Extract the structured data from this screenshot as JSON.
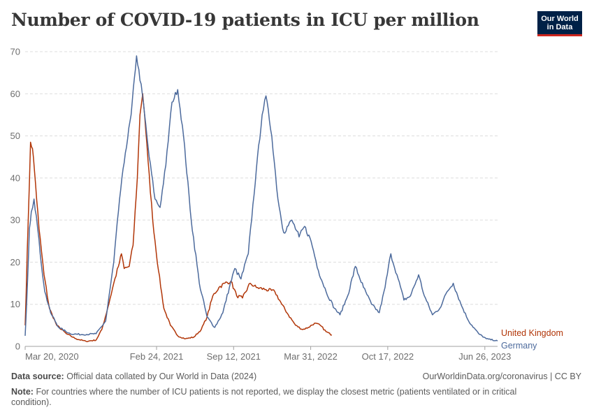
{
  "header": {
    "title": "Number of COVID-19 patients in ICU per million",
    "logo_line1": "Our World",
    "logo_line2": "in Data"
  },
  "footer": {
    "source_label": "Data source:",
    "source_text": "Official data collated by Our World in Data (2024)",
    "url": "OurWorldinData.org/coronavirus | CC BY",
    "note_label": "Note:",
    "note_text": "For countries where the number of ICU patients is not reported, we display the closest metric (patients ventilated or in critical condition)."
  },
  "colors": {
    "uk": "#b13507",
    "germany": "#4c6a9c",
    "grid": "#dddddd",
    "logo_bg": "#002147",
    "logo_accent": "#ce261e"
  },
  "chart_data": {
    "type": "line",
    "title": "Number of COVID-19 patients in ICU per million",
    "xlabel": "",
    "ylabel": "",
    "ylim": [
      0,
      70
    ],
    "y_ticks": [
      0,
      10,
      20,
      30,
      40,
      50,
      60,
      70
    ],
    "x_ticks": [
      "2020-03-20",
      "2021-02-24",
      "2021-09-12",
      "2022-03-31",
      "2022-10-17",
      "2023-06-26"
    ],
    "x_tick_labels": [
      "Mar 20, 2020",
      "Feb 24, 2021",
      "Sep 12, 2021",
      "Mar 31, 2022",
      "Oct 17, 2022",
      "Jun 26, 2023"
    ],
    "x_range": [
      "2020-03-20",
      "2023-07-29"
    ],
    "grid": "horizontal dashed",
    "legend": "labels at line ends, right",
    "series": [
      {
        "name": "United Kingdom",
        "color": "#b13507",
        "points": [
          [
            "2020-03-20",
            5
          ],
          [
            "2020-03-28",
            30
          ],
          [
            "2020-04-03",
            48.5
          ],
          [
            "2020-04-08",
            47
          ],
          [
            "2020-04-13",
            42
          ],
          [
            "2020-04-25",
            28
          ],
          [
            "2020-05-08",
            17
          ],
          [
            "2020-05-22",
            9
          ],
          [
            "2020-06-10",
            5
          ],
          [
            "2020-07-05",
            3
          ],
          [
            "2020-07-30",
            1.8
          ],
          [
            "2020-08-25",
            1.2
          ],
          [
            "2020-09-20",
            1.5
          ],
          [
            "2020-10-05",
            4
          ],
          [
            "2020-10-20",
            9
          ],
          [
            "2020-11-05",
            15
          ],
          [
            "2020-11-20",
            20
          ],
          [
            "2020-11-25",
            22
          ],
          [
            "2020-12-02",
            18.5
          ],
          [
            "2020-12-15",
            19
          ],
          [
            "2020-12-25",
            24
          ],
          [
            "2021-01-05",
            40
          ],
          [
            "2021-01-12",
            55
          ],
          [
            "2021-01-19",
            60
          ],
          [
            "2021-01-24",
            55
          ],
          [
            "2021-02-02",
            44
          ],
          [
            "2021-02-14",
            30
          ],
          [
            "2021-03-01",
            18
          ],
          [
            "2021-03-15",
            9
          ],
          [
            "2021-04-01",
            5
          ],
          [
            "2021-04-20",
            2.5
          ],
          [
            "2021-05-10",
            1.8
          ],
          [
            "2021-06-01",
            2.2
          ],
          [
            "2021-06-20",
            4
          ],
          [
            "2021-07-05",
            7
          ],
          [
            "2021-07-20",
            12
          ],
          [
            "2021-08-05",
            14
          ],
          [
            "2021-08-20",
            15
          ],
          [
            "2021-09-05",
            15.5
          ],
          [
            "2021-09-20",
            12
          ],
          [
            "2021-10-05",
            11.5
          ],
          [
            "2021-10-25",
            15
          ],
          [
            "2021-11-10",
            14
          ],
          [
            "2021-12-05",
            13.5
          ],
          [
            "2021-12-28",
            13
          ],
          [
            "2022-01-15",
            10
          ],
          [
            "2022-02-01",
            7.5
          ],
          [
            "2022-02-20",
            5
          ],
          [
            "2022-03-10",
            4
          ],
          [
            "2022-03-25",
            4.5
          ],
          [
            "2022-04-10",
            5.5
          ],
          [
            "2022-04-25",
            5
          ],
          [
            "2022-05-10",
            3.5
          ],
          [
            "2022-05-25",
            2.7
          ]
        ]
      },
      {
        "name": "Germany",
        "color": "#4c6a9c",
        "points": [
          [
            "2020-03-20",
            2.5
          ],
          [
            "2020-03-26",
            15
          ],
          [
            "2020-03-31",
            28
          ],
          [
            "2020-04-05",
            32
          ],
          [
            "2020-04-12",
            35
          ],
          [
            "2020-04-18",
            31
          ],
          [
            "2020-04-28",
            22
          ],
          [
            "2020-05-10",
            13
          ],
          [
            "2020-05-25",
            8
          ],
          [
            "2020-06-15",
            4.5
          ],
          [
            "2020-07-15",
            3
          ],
          [
            "2020-08-15",
            2.8
          ],
          [
            "2020-09-20",
            3
          ],
          [
            "2020-10-15",
            6
          ],
          [
            "2020-11-05",
            20
          ],
          [
            "2020-11-20",
            35
          ],
          [
            "2020-12-05",
            46
          ],
          [
            "2020-12-20",
            55
          ],
          [
            "2021-01-03",
            69
          ],
          [
            "2021-01-18",
            60
          ],
          [
            "2021-02-05",
            45
          ],
          [
            "2021-02-20",
            35
          ],
          [
            "2021-03-05",
            33
          ],
          [
            "2021-03-20",
            43
          ],
          [
            "2021-04-05",
            58
          ],
          [
            "2021-04-20",
            61
          ],
          [
            "2021-05-05",
            50
          ],
          [
            "2021-05-25",
            30
          ],
          [
            "2021-06-15",
            15
          ],
          [
            "2021-07-05",
            7
          ],
          [
            "2021-07-25",
            4.5
          ],
          [
            "2021-08-15",
            8
          ],
          [
            "2021-09-01",
            14
          ],
          [
            "2021-09-15",
            18.5
          ],
          [
            "2021-10-01",
            16
          ],
          [
            "2021-10-20",
            22
          ],
          [
            "2021-11-10",
            42
          ],
          [
            "2021-11-25",
            55
          ],
          [
            "2021-12-05",
            59.5
          ],
          [
            "2021-12-20",
            50
          ],
          [
            "2022-01-05",
            35
          ],
          [
            "2022-01-20",
            27
          ],
          [
            "2022-02-10",
            30
          ],
          [
            "2022-03-01",
            26
          ],
          [
            "2022-03-15",
            28.5
          ],
          [
            "2022-04-01",
            25
          ],
          [
            "2022-04-20",
            18
          ],
          [
            "2022-05-10",
            13
          ],
          [
            "2022-06-01",
            9
          ],
          [
            "2022-06-15",
            7.5
          ],
          [
            "2022-07-05",
            12
          ],
          [
            "2022-07-25",
            19
          ],
          [
            "2022-08-15",
            14
          ],
          [
            "2022-09-05",
            10
          ],
          [
            "2022-09-25",
            8
          ],
          [
            "2022-10-10",
            14
          ],
          [
            "2022-10-25",
            22
          ],
          [
            "2022-11-10",
            17
          ],
          [
            "2022-11-28",
            11
          ],
          [
            "2022-12-15",
            12
          ],
          [
            "2023-01-05",
            17
          ],
          [
            "2023-01-20",
            12
          ],
          [
            "2023-02-10",
            7.5
          ],
          [
            "2023-03-01",
            9
          ],
          [
            "2023-03-20",
            13
          ],
          [
            "2023-04-05",
            15
          ],
          [
            "2023-04-25",
            10
          ],
          [
            "2023-05-15",
            6
          ],
          [
            "2023-06-10",
            3
          ],
          [
            "2023-06-30",
            1.8
          ],
          [
            "2023-07-29",
            1.3
          ]
        ]
      }
    ]
  }
}
